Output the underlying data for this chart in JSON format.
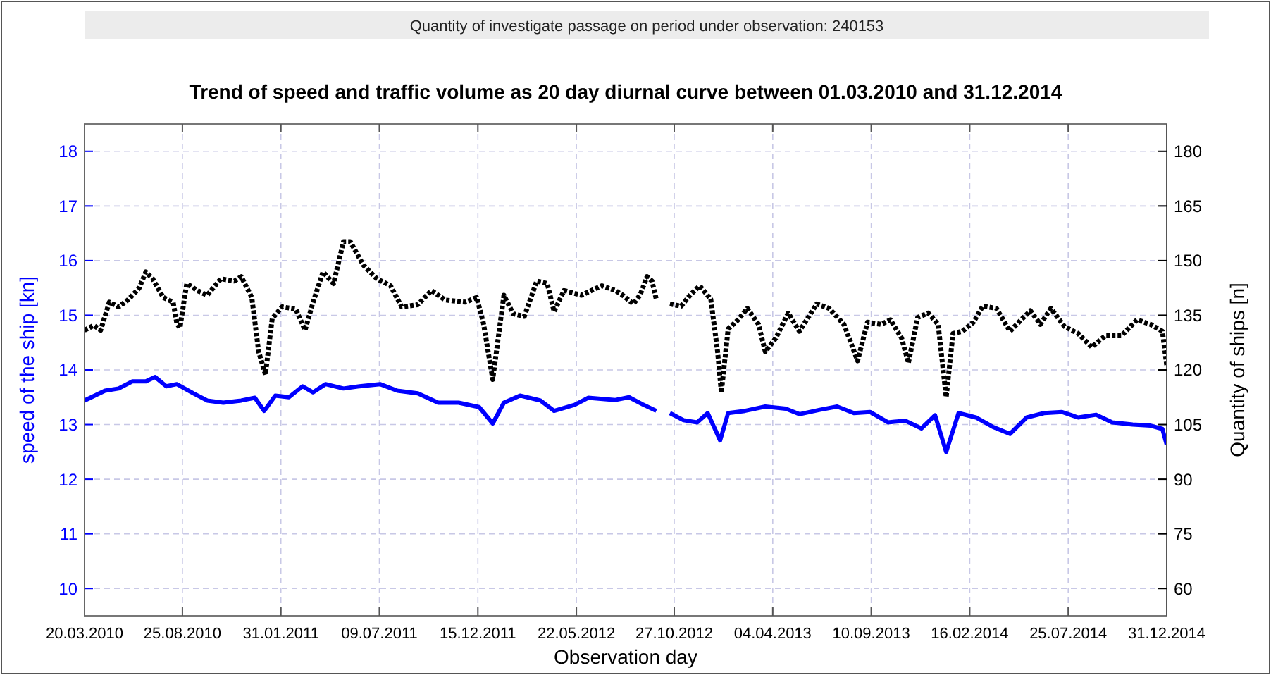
{
  "chart_data": {
    "type": "line",
    "title": "Trend of speed and traffic volume as 20 day diurnal curve between 01.03.2010 and 31.12.2014",
    "annotations": [
      "Quantity of investigate passage on period under observation: 240153"
    ],
    "xlabel": "Observation day",
    "ylabel": "speed of the ship [kn]",
    "y2label": "Quantity of ships [n]",
    "grid": true,
    "xlim": [
      "2010-03-20",
      "2014-12-31"
    ],
    "xticks": [
      {
        "value": "2010-03-20",
        "label": "20.03.2010"
      },
      {
        "value": "2010-08-25",
        "label": "25.08.2010"
      },
      {
        "value": "2011-01-31",
        "label": "31.01.2011"
      },
      {
        "value": "2011-07-09",
        "label": "09.07.2011"
      },
      {
        "value": "2011-12-15",
        "label": "15.12.2011"
      },
      {
        "value": "2012-05-22",
        "label": "22.05.2012"
      },
      {
        "value": "2012-10-27",
        "label": "27.10.2012"
      },
      {
        "value": "2013-04-04",
        "label": "04.04.2013"
      },
      {
        "value": "2013-09-10",
        "label": "10.09.2013"
      },
      {
        "value": "2014-02-16",
        "label": "16.02.2014"
      },
      {
        "value": "2014-07-25",
        "label": "25.07.2014"
      },
      {
        "value": "2014-12-31",
        "label": "31.12.2014"
      }
    ],
    "ylim": [
      9.5,
      18.5
    ],
    "yticks": [
      10,
      11,
      12,
      13,
      14,
      15,
      16,
      17,
      18
    ],
    "y2lim": [
      52.5,
      187.5
    ],
    "y2ticks": [
      60,
      75,
      90,
      105,
      120,
      135,
      150,
      165,
      180
    ],
    "series": [
      {
        "color": "#0000ff",
        "line_style": "solid",
        "x": [
          "2010-03-20",
          "2010-04-22",
          "2010-05-14",
          "2010-06-05",
          "2010-06-27",
          "2010-07-12",
          "2010-07-30",
          "2010-08-16",
          "2010-09-12",
          "2010-10-04",
          "2010-10-30",
          "2010-11-28",
          "2010-12-20",
          "2011-01-04",
          "2011-01-22",
          "2011-02-13",
          "2011-03-07",
          "2011-03-24",
          "2011-04-13",
          "2011-05-12",
          "2011-06-07",
          "2011-07-10",
          "2011-08-07",
          "2011-09-09",
          "2011-10-12",
          "2011-11-14",
          "2011-12-17",
          "2012-01-08",
          "2012-01-26",
          "2012-02-21",
          "2012-03-25",
          "2012-04-16",
          "2012-05-19",
          "2012-06-10",
          "2012-07-24",
          "2012-08-15",
          "2012-09-06",
          "2012-09-28",
          "2012-10-09",
          "2012-10-20",
          "2012-11-11",
          "2012-12-03",
          "2012-12-20",
          "2013-01-09",
          "2013-01-22",
          "2013-02-18",
          "2013-03-23",
          "2013-04-25",
          "2013-05-17",
          "2013-06-19",
          "2013-07-17",
          "2013-08-13",
          "2013-09-08",
          "2013-10-07",
          "2013-11-04",
          "2013-11-30",
          "2013-12-22",
          "2014-01-09",
          "2014-01-29",
          "2014-02-26",
          "2014-03-25",
          "2014-04-22",
          "2014-05-19",
          "2014-06-16",
          "2014-07-15",
          "2014-08-10",
          "2014-09-08",
          "2014-10-04",
          "2014-11-06",
          "2014-12-05",
          "2014-12-24",
          "2014-12-31"
        ],
        "values": [
          13.44,
          13.62,
          13.66,
          13.79,
          13.79,
          13.87,
          13.7,
          13.74,
          13.57,
          13.44,
          13.4,
          13.44,
          13.49,
          13.25,
          13.53,
          13.5,
          13.7,
          13.59,
          13.74,
          13.66,
          13.7,
          13.74,
          13.62,
          13.57,
          13.4,
          13.4,
          13.32,
          13.02,
          13.4,
          13.53,
          13.44,
          13.25,
          13.36,
          13.49,
          13.45,
          13.5,
          13.37,
          13.25,
          null,
          13.21,
          13.08,
          13.04,
          13.21,
          12.71,
          13.21,
          13.25,
          13.33,
          13.29,
          13.19,
          13.27,
          13.33,
          13.21,
          13.23,
          13.04,
          13.07,
          12.93,
          13.17,
          12.5,
          13.21,
          13.13,
          12.96,
          12.83,
          13.13,
          13.21,
          13.23,
          13.13,
          13.18,
          13.04,
          13.0,
          12.98,
          12.92,
          12.63
        ]
      },
      {
        "color": "#000000",
        "axis": "y2",
        "line_style": "dotted",
        "x": [
          "2010-03-20",
          "2010-04-04",
          "2010-04-15",
          "2010-04-29",
          "2010-05-14",
          "2010-05-29",
          "2010-06-16",
          "2010-06-27",
          "2010-07-08",
          "2010-07-25",
          "2010-08-10",
          "2010-08-16",
          "2010-08-21",
          "2010-09-01",
          "2010-09-18",
          "2010-10-04",
          "2010-10-26",
          "2010-11-17",
          "2010-11-28",
          "2010-12-15",
          "2010-12-26",
          "2011-01-06",
          "2011-01-17",
          "2011-02-02",
          "2011-02-24",
          "2011-03-11",
          "2011-03-24",
          "2011-04-09",
          "2011-04-26",
          "2011-05-12",
          "2011-05-23",
          "2011-06-13",
          "2011-07-05",
          "2011-07-27",
          "2011-08-14",
          "2011-09-09",
          "2011-10-01",
          "2011-10-23",
          "2011-11-25",
          "2011-12-13",
          "2011-12-24",
          "2012-01-08",
          "2012-01-26",
          "2012-02-10",
          "2012-02-28",
          "2012-03-19",
          "2012-04-05",
          "2012-04-16",
          "2012-05-02",
          "2012-05-30",
          "2012-07-02",
          "2012-07-24",
          "2012-08-04",
          "2012-08-22",
          "2012-09-02",
          "2012-09-13",
          "2012-09-21",
          "2012-09-28",
          "2012-10-07",
          "2012-10-20",
          "2012-11-07",
          "2012-11-22",
          "2012-12-07",
          "2012-12-25",
          "2013-01-05",
          "2013-01-11",
          "2013-01-22",
          "2013-02-07",
          "2013-02-22",
          "2013-03-12",
          "2013-03-23",
          "2013-04-09",
          "2013-04-29",
          "2013-05-17",
          "2013-06-14",
          "2013-07-04",
          "2013-07-28",
          "2013-08-19",
          "2013-09-04",
          "2013-09-26",
          "2013-10-11",
          "2013-10-29",
          "2013-11-09",
          "2013-11-24",
          "2013-12-11",
          "2013-12-27",
          "2014-01-09",
          "2014-01-20",
          "2014-02-04",
          "2014-02-22",
          "2014-03-09",
          "2014-03-31",
          "2014-04-22",
          "2014-05-10",
          "2014-05-25",
          "2014-06-10",
          "2014-06-27",
          "2014-07-19",
          "2014-08-10",
          "2014-09-01",
          "2014-09-23",
          "2014-10-19",
          "2014-11-13",
          "2014-12-05",
          "2014-12-24",
          "2014-12-31"
        ],
        "values": [
          130.9,
          132.2,
          130.9,
          138.6,
          137.3,
          139.2,
          142.4,
          146.9,
          145,
          139.9,
          138.6,
          132.8,
          131.5,
          143.7,
          141.8,
          140.5,
          145,
          144.4,
          145.6,
          139.9,
          125.1,
          118.7,
          134.1,
          137.3,
          136.7,
          130.9,
          138.6,
          146.9,
          143.7,
          155.2,
          155.2,
          148.8,
          145,
          143.1,
          137.3,
          137.9,
          141.8,
          139.2,
          138.6,
          139.9,
          132.8,
          117.4,
          140.5,
          135.4,
          134.7,
          144.4,
          143.7,
          136,
          141.8,
          140.5,
          143.1,
          141.8,
          140.6,
          138.1,
          140.6,
          145.6,
          144.4,
          139.4,
          null,
          138.1,
          137.5,
          140.6,
          143.1,
          139.4,
          125,
          113.75,
          131.25,
          133.75,
          136.9,
          132.5,
          125,
          128.75,
          135.6,
          130.6,
          138.1,
          136.9,
          132.5,
          122.5,
          133.1,
          132.5,
          133.75,
          128.75,
          121.9,
          134.4,
          135.6,
          132.5,
          112.5,
          130,
          130.6,
          133.1,
          137.5,
          136.9,
          130.6,
          133.75,
          136.25,
          132.5,
          136.9,
          131.9,
          130,
          126.25,
          129.4,
          129.4,
          133.75,
          132.5,
          130.6,
          121.25
        ]
      }
    ]
  }
}
